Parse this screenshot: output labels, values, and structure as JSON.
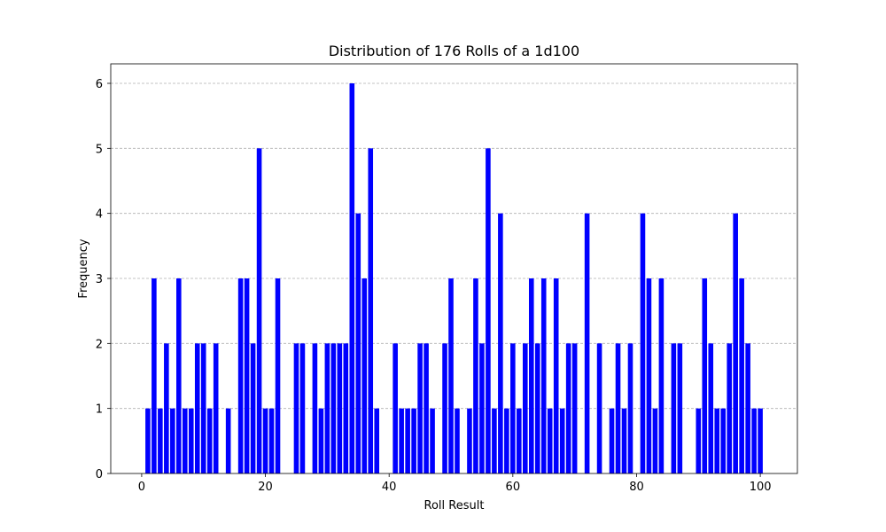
{
  "chart_data": {
    "type": "bar",
    "title": "Distribution of 176 Rolls of a 1d100",
    "xlabel": "Roll Result",
    "ylabel": "Frequency",
    "xlim": [
      -5,
      106
    ],
    "ylim": [
      0,
      6.3
    ],
    "xticks": [
      0,
      20,
      40,
      60,
      80,
      100
    ],
    "yticks": [
      0,
      1,
      2,
      3,
      4,
      5,
      6
    ],
    "grid": "y-dashed",
    "bar_color": "#0000ff",
    "x": [
      1,
      2,
      3,
      4,
      5,
      6,
      7,
      8,
      9,
      10,
      11,
      12,
      14,
      16,
      17,
      18,
      19,
      20,
      21,
      22,
      25,
      26,
      28,
      29,
      30,
      31,
      32,
      33,
      34,
      35,
      36,
      37,
      38,
      41,
      42,
      43,
      44,
      45,
      46,
      47,
      49,
      50,
      51,
      53,
      54,
      55,
      56,
      57,
      58,
      59,
      60,
      61,
      62,
      63,
      64,
      65,
      66,
      67,
      68,
      69,
      70,
      72,
      74,
      76,
      77,
      78,
      79,
      81,
      82,
      83,
      84,
      86,
      87,
      90,
      91,
      92,
      93,
      94,
      95,
      96,
      97,
      98,
      99,
      100
    ],
    "values": [
      1,
      3,
      1,
      2,
      1,
      3,
      1,
      1,
      2,
      2,
      1,
      2,
      1,
      3,
      3,
      2,
      5,
      1,
      1,
      3,
      2,
      2,
      2,
      1,
      2,
      2,
      2,
      2,
      6,
      4,
      3,
      5,
      1,
      2,
      1,
      1,
      1,
      2,
      2,
      1,
      2,
      3,
      1,
      1,
      3,
      2,
      5,
      1,
      4,
      1,
      2,
      1,
      2,
      3,
      2,
      3,
      1,
      3,
      1,
      2,
      2,
      4,
      2,
      1,
      2,
      1,
      2,
      4,
      3,
      1,
      3,
      2,
      2,
      1,
      3,
      2,
      1,
      1,
      2,
      4,
      3,
      2,
      1,
      1
    ]
  }
}
